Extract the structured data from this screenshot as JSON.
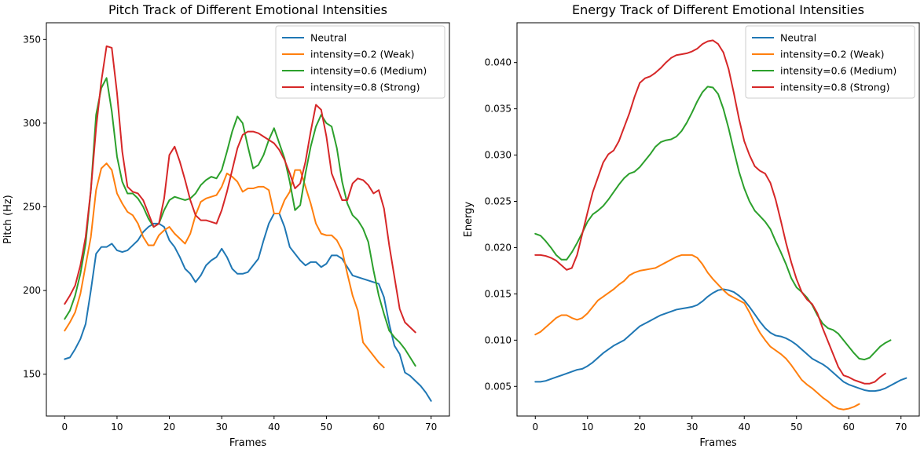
{
  "chart_data": [
    {
      "type": "line",
      "title": "Pitch Track of Different Emotional Intensities",
      "xlabel": "Frames",
      "ylabel": "Pitch (Hz)",
      "xlim": [
        -3.5,
        73.5
      ],
      "ylim": [
        125,
        360
      ],
      "xticks": [
        0,
        10,
        20,
        30,
        40,
        50,
        60,
        70
      ],
      "yticks": [
        150,
        200,
        250,
        300,
        350
      ],
      "tick_decimals": 0,
      "grid": false,
      "legend": "top-right",
      "series": [
        {
          "name": "Neutral",
          "color": "#1f77b4",
          "x_start": 0,
          "values": [
            159,
            160,
            165,
            171,
            180,
            200,
            222,
            226,
            226,
            228,
            224,
            223,
            224,
            227,
            230,
            235,
            238,
            240,
            240,
            238,
            230,
            226,
            220,
            213,
            210,
            205,
            209,
            215,
            218,
            220,
            225,
            220,
            213,
            210,
            210,
            211,
            215,
            219,
            230,
            240,
            246,
            246,
            238,
            226,
            222,
            218,
            215,
            217,
            217,
            214,
            216,
            221,
            221,
            219,
            214,
            209,
            208,
            207,
            206,
            205,
            204,
            196,
            180,
            167,
            162,
            151,
            149,
            146,
            143,
            139,
            134
          ]
        },
        {
          "name": "intensity=0.2 (Weak)",
          "color": "#ff7f0e",
          "x_start": 0,
          "values": [
            176,
            181,
            187,
            198,
            215,
            232,
            260,
            273,
            276,
            272,
            258,
            252,
            247,
            245,
            240,
            232,
            227,
            227,
            233,
            236,
            238,
            234,
            231,
            228,
            234,
            245,
            253,
            255,
            256,
            257,
            262,
            270,
            268,
            265,
            259,
            261,
            261,
            262,
            262,
            260,
            246,
            246,
            254,
            259,
            272,
            272,
            262,
            252,
            240,
            234,
            233,
            233,
            230,
            224,
            210,
            197,
            188,
            169,
            165,
            161,
            157,
            154
          ]
        },
        {
          "name": "intensity=0.6 (Medium)",
          "color": "#2ca02c",
          "x_start": 0,
          "values": [
            183,
            188,
            197,
            210,
            228,
            260,
            305,
            321,
            327,
            307,
            280,
            265,
            258,
            258,
            255,
            250,
            243,
            238,
            240,
            248,
            254,
            256,
            255,
            254,
            255,
            258,
            263,
            266,
            268,
            267,
            272,
            283,
            295,
            304,
            300,
            286,
            273,
            275,
            281,
            290,
            297,
            288,
            279,
            265,
            248,
            251,
            270,
            286,
            298,
            305,
            300,
            298,
            285,
            265,
            252,
            245,
            242,
            237,
            229,
            212,
            197,
            186,
            176,
            172,
            169,
            165,
            160,
            155
          ]
        },
        {
          "name": "intensity=0.8 (Strong)",
          "color": "#d62728",
          "x_start": 0,
          "values": [
            192,
            197,
            203,
            215,
            232,
            260,
            297,
            325,
            346,
            345,
            318,
            283,
            262,
            259,
            258,
            254,
            246,
            238,
            240,
            255,
            281,
            286,
            277,
            266,
            254,
            245,
            242,
            242,
            241,
            240,
            248,
            259,
            272,
            285,
            293,
            295,
            295,
            294,
            292,
            290,
            288,
            284,
            278,
            270,
            261,
            264,
            277,
            295,
            311,
            308,
            292,
            270,
            262,
            254,
            254,
            264,
            267,
            266,
            263,
            258,
            260,
            249,
            227,
            208,
            189,
            181,
            178,
            175
          ]
        }
      ]
    },
    {
      "type": "line",
      "title": "Energy Track of Different Emotional Intensities",
      "xlabel": "Frames",
      "ylabel": "Energy",
      "xlim": [
        -3.5,
        73.5
      ],
      "ylim": [
        0.0018,
        0.0443
      ],
      "xticks": [
        0,
        10,
        20,
        30,
        40,
        50,
        60,
        70
      ],
      "yticks": [
        0.005,
        0.01,
        0.015,
        0.02,
        0.025,
        0.03,
        0.035,
        0.04
      ],
      "tick_decimals": 3,
      "grid": false,
      "legend": "top-right",
      "series": [
        {
          "name": "Neutral",
          "color": "#1f77b4",
          "x_start": 0,
          "values": [
            0.0055,
            0.0055,
            0.0056,
            0.0058,
            0.006,
            0.0062,
            0.0064,
            0.0066,
            0.0068,
            0.0069,
            0.0072,
            0.0076,
            0.0081,
            0.0086,
            0.009,
            0.0094,
            0.0097,
            0.01,
            0.0105,
            0.011,
            0.0115,
            0.0118,
            0.0121,
            0.0124,
            0.0127,
            0.0129,
            0.0131,
            0.0133,
            0.0134,
            0.0135,
            0.0136,
            0.0138,
            0.0142,
            0.0147,
            0.0151,
            0.0154,
            0.0155,
            0.0154,
            0.0152,
            0.0148,
            0.0143,
            0.0136,
            0.0128,
            0.012,
            0.0113,
            0.0108,
            0.0105,
            0.0104,
            0.0102,
            0.0099,
            0.0095,
            0.009,
            0.0085,
            0.008,
            0.0077,
            0.0074,
            0.007,
            0.0065,
            0.006,
            0.0055,
            0.0052,
            0.005,
            0.0048,
            0.0046,
            0.0045,
            0.0045,
            0.0046,
            0.0048,
            0.0051,
            0.0054,
            0.0057,
            0.0059
          ]
        },
        {
          "name": "intensity=0.2 (Weak)",
          "color": "#ff7f0e",
          "x_start": 0,
          "values": [
            0.0106,
            0.0109,
            0.0114,
            0.0119,
            0.0124,
            0.0127,
            0.0127,
            0.0124,
            0.0122,
            0.0124,
            0.0129,
            0.0136,
            0.0143,
            0.0147,
            0.0151,
            0.0155,
            0.016,
            0.0164,
            0.017,
            0.0173,
            0.0175,
            0.0176,
            0.0177,
            0.0178,
            0.0181,
            0.0184,
            0.0187,
            0.019,
            0.0192,
            0.0192,
            0.0192,
            0.0189,
            0.0182,
            0.0173,
            0.0166,
            0.016,
            0.0154,
            0.0149,
            0.0146,
            0.0143,
            0.014,
            0.013,
            0.0118,
            0.0108,
            0.01,
            0.0093,
            0.0089,
            0.0085,
            0.008,
            0.0073,
            0.0065,
            0.0057,
            0.0052,
            0.0048,
            0.0043,
            0.0038,
            0.0034,
            0.0029,
            0.0026,
            0.0025,
            0.0026,
            0.0028,
            0.0031
          ]
        },
        {
          "name": "intensity=0.6 (Medium)",
          "color": "#2ca02c",
          "x_start": 0,
          "values": [
            0.0215,
            0.0213,
            0.0207,
            0.02,
            0.0192,
            0.0187,
            0.0187,
            0.0195,
            0.0205,
            0.0216,
            0.0228,
            0.0236,
            0.024,
            0.0245,
            0.0252,
            0.026,
            0.0268,
            0.0275,
            0.028,
            0.0282,
            0.0287,
            0.0294,
            0.0301,
            0.0309,
            0.0314,
            0.0316,
            0.0317,
            0.032,
            0.0326,
            0.0335,
            0.0346,
            0.0358,
            0.0368,
            0.0374,
            0.0373,
            0.0366,
            0.035,
            0.0329,
            0.0305,
            0.0282,
            0.0264,
            0.025,
            0.024,
            0.0234,
            0.0228,
            0.022,
            0.0207,
            0.0195,
            0.0182,
            0.0167,
            0.0157,
            0.0152,
            0.0146,
            0.0138,
            0.0127,
            0.0118,
            0.0113,
            0.0111,
            0.0107,
            0.01,
            0.0093,
            0.0086,
            0.008,
            0.0079,
            0.0081,
            0.0087,
            0.0093,
            0.0097,
            0.01
          ]
        },
        {
          "name": "intensity=0.8 (Strong)",
          "color": "#d62728",
          "x_start": 0,
          "values": [
            0.0192,
            0.0192,
            0.0191,
            0.0189,
            0.0186,
            0.0181,
            0.0176,
            0.0178,
            0.0192,
            0.0215,
            0.0238,
            0.026,
            0.0276,
            0.0292,
            0.0301,
            0.0305,
            0.0315,
            0.033,
            0.0345,
            0.0363,
            0.0378,
            0.0383,
            0.0385,
            0.0389,
            0.0394,
            0.04,
            0.0405,
            0.0408,
            0.0409,
            0.041,
            0.0412,
            0.0415,
            0.042,
            0.0423,
            0.0424,
            0.042,
            0.0411,
            0.0393,
            0.0367,
            0.0339,
            0.0315,
            0.03,
            0.0288,
            0.0283,
            0.028,
            0.027,
            0.0252,
            0.0229,
            0.0205,
            0.0184,
            0.0166,
            0.0152,
            0.0144,
            0.0139,
            0.0129,
            0.0113,
            0.0099,
            0.0085,
            0.0071,
            0.0062,
            0.006,
            0.0057,
            0.0055,
            0.0053,
            0.0053,
            0.0055,
            0.006,
            0.0064
          ]
        }
      ]
    }
  ]
}
